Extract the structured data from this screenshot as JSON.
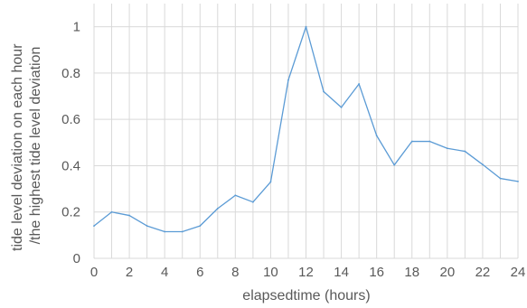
{
  "chart_data": {
    "type": "line",
    "xlabel": "elapsedtime (hours)",
    "ylabel_lines": [
      "tide level deviation on each hour",
      "/the highest tide level deviation"
    ],
    "xlim": [
      0,
      24
    ],
    "ylim": [
      0,
      1.1
    ],
    "x_ticks": [
      0,
      2,
      4,
      6,
      8,
      10,
      12,
      14,
      16,
      18,
      20,
      22,
      24
    ],
    "y_ticks": [
      0,
      0.2,
      0.4,
      0.6,
      0.8,
      1
    ],
    "y_tick_labels": [
      "0",
      "0.2",
      "0.4",
      "0.6",
      "0.8",
      "1"
    ],
    "grid": true,
    "series": [
      {
        "color": "#5b9bd5",
        "x": [
          0,
          1,
          2,
          3,
          4,
          5,
          6,
          7,
          8,
          9,
          10,
          11,
          12,
          13,
          14,
          15,
          16,
          17,
          18,
          19,
          20,
          21,
          22,
          23,
          24
        ],
        "values": [
          0.14,
          0.2,
          0.185,
          0.14,
          0.115,
          0.115,
          0.14,
          0.215,
          0.272,
          0.243,
          0.33,
          0.77,
          1.0,
          0.72,
          0.652,
          0.753,
          0.53,
          0.403,
          0.505,
          0.505,
          0.475,
          0.462,
          0.405,
          0.345,
          0.332
        ]
      }
    ]
  }
}
